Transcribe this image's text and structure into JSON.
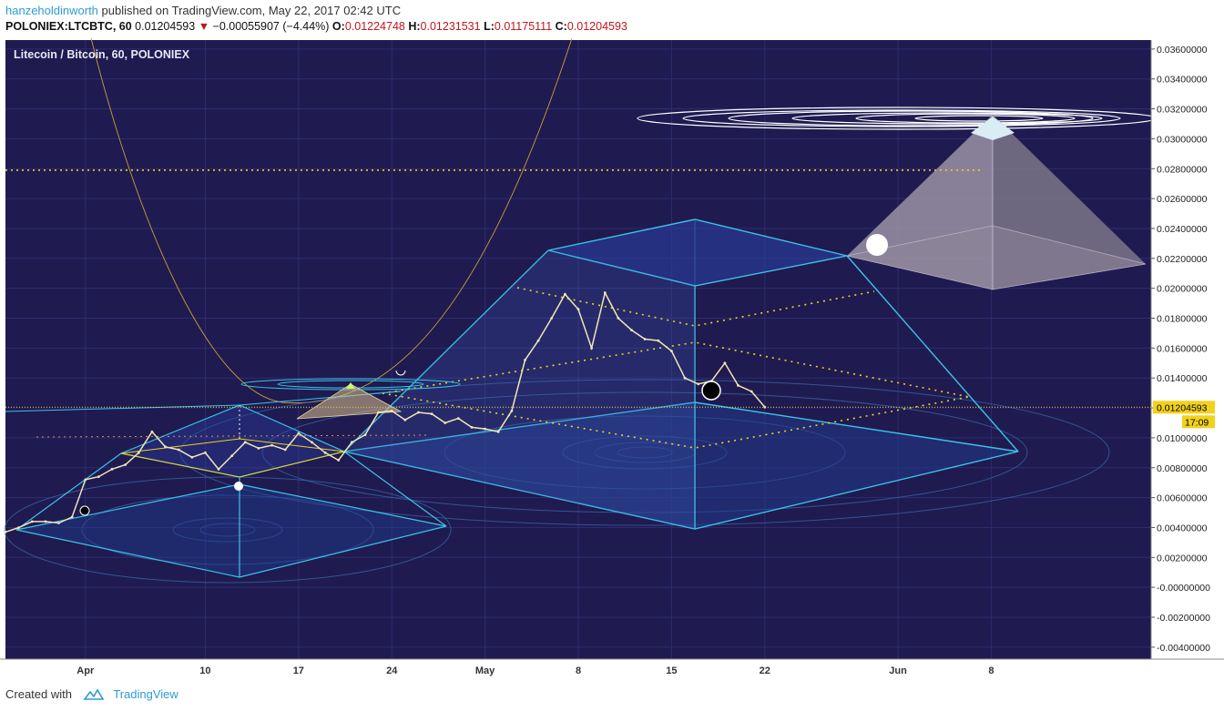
{
  "header": {
    "author": "hanzeholdinworth",
    "published_text": "published on TradingView.com, May 22, 2017 02:42 UTC",
    "symbol": "POLONIEX:LTCBTC, 60",
    "last": "0.01204593",
    "change": "−0.00055907 (−4.44%)",
    "open_label": "O:",
    "open": "0.01224748",
    "high_label": "H:",
    "high": "0.01231531",
    "low_label": "L:",
    "low": "0.01175111",
    "close_label": "C:",
    "close": "0.01204593",
    "change_direction": "down-triangle-icon"
  },
  "footer": {
    "created_with": "Created with",
    "brand": "TradingView",
    "logo_icon": "tradingview-cloud-icon"
  },
  "colors": {
    "background": "#1f1a50",
    "candle": "#f2e6b4",
    "accent_blue": "#2d9bd6",
    "price_line": "#f2d21c",
    "pyramid_edge": "#3cc3e6"
  },
  "chart_data": {
    "type": "line",
    "title": "Litecoin / Bitcoin, 60, POLONIEX",
    "xlabel": "",
    "ylabel": "",
    "ylim": [
      -0.0048,
      0.0366
    ],
    "y_ticks": [
      0.036,
      0.034,
      0.032,
      0.03,
      0.028,
      0.026,
      0.024,
      0.022,
      0.02,
      0.018,
      0.016,
      0.014,
      0.012,
      0.01,
      0.008,
      0.006,
      0.004,
      0.002,
      0.0,
      -0.002,
      -0.004
    ],
    "y_tick_labels": [
      "0.03600000",
      "0.03400000",
      "0.03200000",
      "0.03000000",
      "0.02800000",
      "0.02600000",
      "0.02400000",
      "0.02200000",
      "0.02000000",
      "0.01800000",
      "0.01600000",
      "0.01400000",
      "0.01200000",
      "0.01000000",
      "0.00800000",
      "0.00600000",
      "0.00400000",
      "0.00200000",
      "-0.00000000",
      "-0.00200000",
      "-0.00400000"
    ],
    "x_range": [
      "2017-03-26",
      "2017-06-20"
    ],
    "x_ticks": [
      {
        "date": "2017-04-01",
        "label": "Apr"
      },
      {
        "date": "2017-04-10",
        "label": "10"
      },
      {
        "date": "2017-04-17",
        "label": "17"
      },
      {
        "date": "2017-04-24",
        "label": "24"
      },
      {
        "date": "2017-05-01",
        "label": "May"
      },
      {
        "date": "2017-05-08",
        "label": "8"
      },
      {
        "date": "2017-05-15",
        "label": "15"
      },
      {
        "date": "2017-05-22",
        "label": "22"
      },
      {
        "date": "2017-06-01",
        "label": "Jun"
      },
      {
        "date": "2017-06-08",
        "label": "8"
      }
    ],
    "grid": true,
    "last_price": 0.01204593,
    "last_price_label": "0.01204593",
    "countdown_label": "17:09",
    "dotted_level": 0.0279,
    "series": [
      {
        "values": [
          [
            "2017-03-26",
            0.0037
          ],
          [
            "2017-03-27",
            0.004
          ],
          [
            "2017-03-28",
            0.0044
          ],
          [
            "2017-03-29",
            0.0044
          ],
          [
            "2017-03-30",
            0.0043
          ],
          [
            "2017-03-31",
            0.0047
          ],
          [
            "2017-04-01",
            0.0072
          ],
          [
            "2017-04-02",
            0.0074
          ],
          [
            "2017-04-03",
            0.0079
          ],
          [
            "2017-04-04",
            0.0082
          ],
          [
            "2017-04-05",
            0.009
          ],
          [
            "2017-04-06",
            0.0104
          ],
          [
            "2017-04-07",
            0.0094
          ],
          [
            "2017-04-08",
            0.0092
          ],
          [
            "2017-04-09",
            0.0087
          ],
          [
            "2017-04-10",
            0.009
          ],
          [
            "2017-04-11",
            0.0079
          ],
          [
            "2017-04-12",
            0.0088
          ],
          [
            "2017-04-13",
            0.0097
          ],
          [
            "2017-04-14",
            0.0093
          ],
          [
            "2017-04-15",
            0.0095
          ],
          [
            "2017-04-16",
            0.0092
          ],
          [
            "2017-04-17",
            0.0103
          ],
          [
            "2017-04-18",
            0.0097
          ],
          [
            "2017-04-19",
            0.009
          ],
          [
            "2017-04-20",
            0.0085
          ],
          [
            "2017-04-21",
            0.0097
          ],
          [
            "2017-04-22",
            0.0102
          ],
          [
            "2017-04-23",
            0.0117
          ],
          [
            "2017-04-24",
            0.0118
          ],
          [
            "2017-04-25",
            0.0112
          ],
          [
            "2017-04-26",
            0.0117
          ],
          [
            "2017-04-27",
            0.0116
          ],
          [
            "2017-04-28",
            0.011
          ],
          [
            "2017-04-29",
            0.0113
          ],
          [
            "2017-04-30",
            0.0107
          ],
          [
            "2017-05-01",
            0.0106
          ],
          [
            "2017-05-02",
            0.0104
          ],
          [
            "2017-05-03",
            0.0118
          ],
          [
            "2017-05-04",
            0.0152
          ],
          [
            "2017-05-05",
            0.0165
          ],
          [
            "2017-05-06",
            0.018
          ],
          [
            "2017-05-07",
            0.0196
          ],
          [
            "2017-05-08",
            0.0186
          ],
          [
            "2017-05-09",
            0.016
          ],
          [
            "2017-05-10",
            0.0197
          ],
          [
            "2017-05-11",
            0.018
          ],
          [
            "2017-05-12",
            0.0172
          ],
          [
            "2017-05-13",
            0.0166
          ],
          [
            "2017-05-14",
            0.0165
          ],
          [
            "2017-05-15",
            0.0158
          ],
          [
            "2017-05-16",
            0.014
          ],
          [
            "2017-05-17",
            0.0136
          ],
          [
            "2017-05-18",
            0.0138
          ],
          [
            "2017-05-19",
            0.015
          ],
          [
            "2017-05-20",
            0.0135
          ],
          [
            "2017-05-21",
            0.0131
          ],
          [
            "2017-05-22",
            0.01205
          ]
        ]
      }
    ]
  }
}
